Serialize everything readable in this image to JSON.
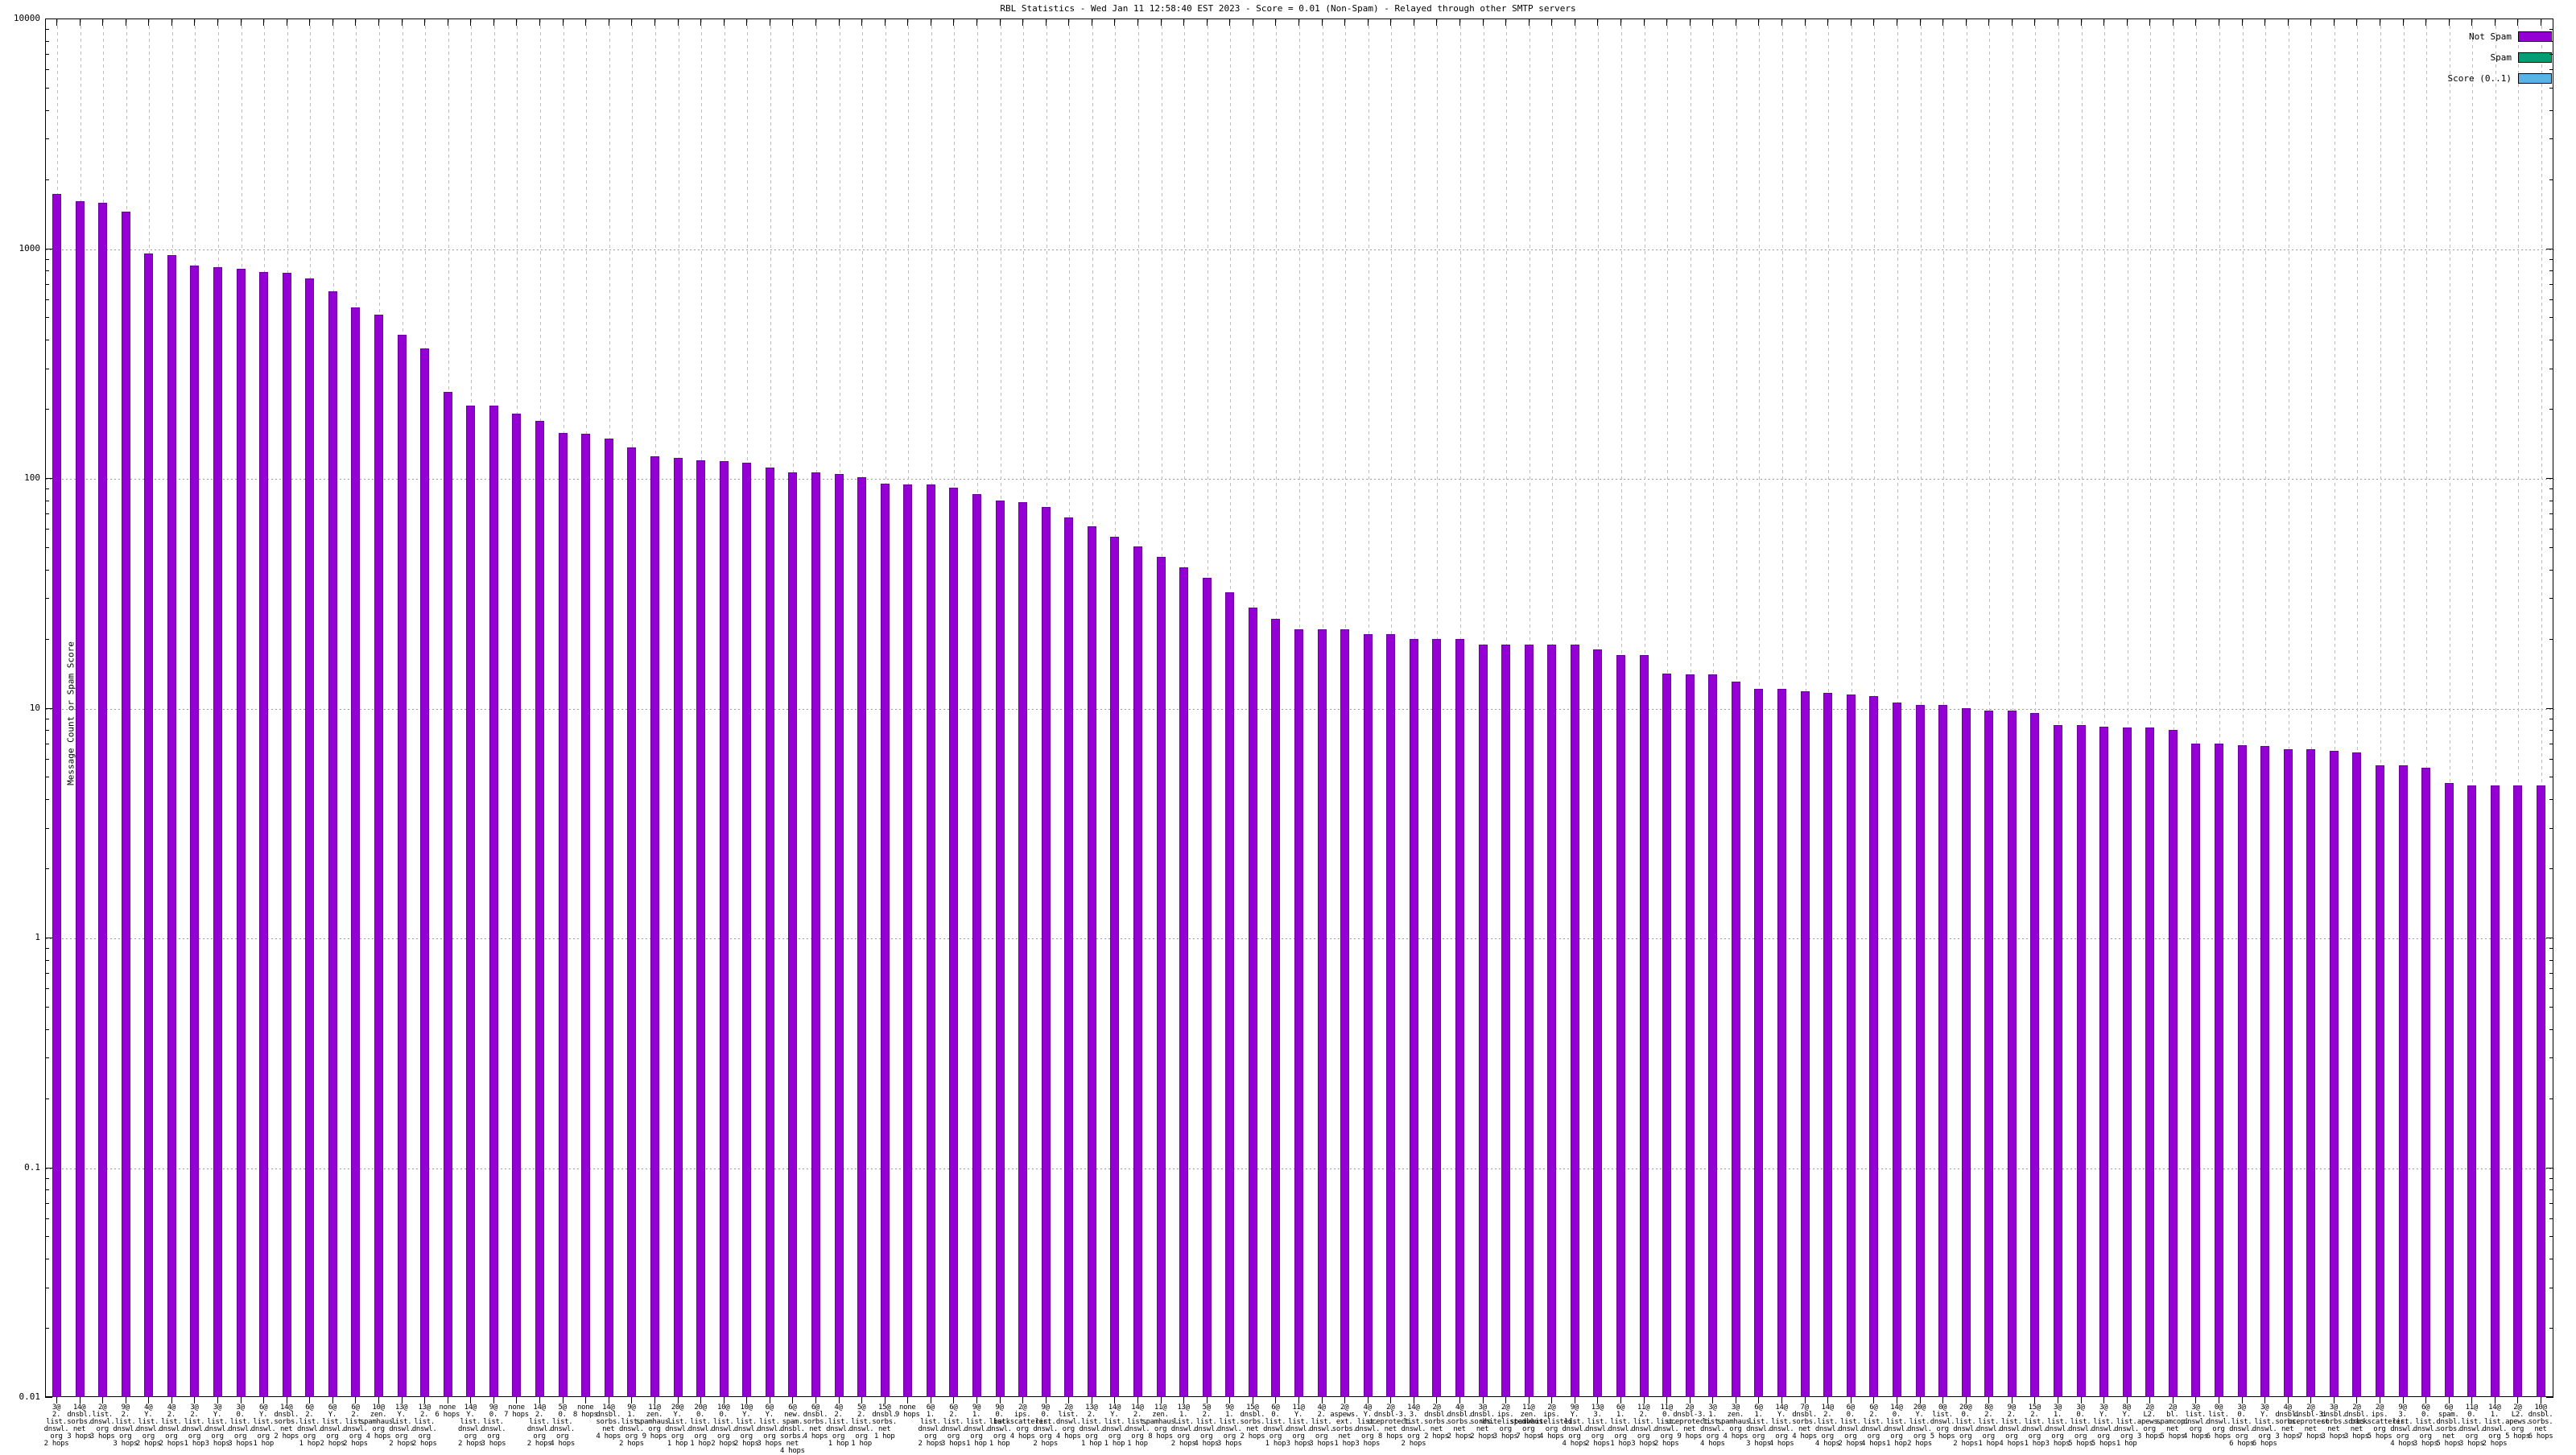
{
  "chart_data": {
    "type": "bar",
    "title": "RBL Statistics - Wed Jan 11 12:58:40 EST 2023 - Score = 0.01 (Non-Spam) - Relayed through other SMTP servers",
    "ylabel": "Message Count or Spam Score",
    "xlabel": "",
    "y_axis": {
      "scale": "log",
      "min": 0.01,
      "max": 10000,
      "tick_labels": [
        "10000",
        "1000",
        "100",
        "10",
        "1",
        "0.1",
        "0.01"
      ]
    },
    "grid": {
      "horizontal": "dotted lines at each decade",
      "vertical": "dashed line at each category"
    },
    "legend_position": "top-right",
    "legend": [
      {
        "label": "Not Spam",
        "color": "#9400d3"
      },
      {
        "label": "Spam",
        "color": "#009e73"
      },
      {
        "label": "Score (0..1)",
        "color": "#56b4e9"
      }
    ],
    "bar_series": "Not Spam",
    "categories": [
      "3@2.list.dnswl.org 2 hops",
      "14@dnsbl.sorbs.net 3 hops",
      "2@list.dnswl.org 3 hops",
      "9@2.list.dnswl.org 3 hops",
      "4@Y.list.dnswl.org 2 hops",
      "4@2.list.dnswl.org 2 hops",
      "3@2.list.dnswl.org 1 hop",
      "3@Y.list.dnswl.org 3 hops",
      "3@0.list.dnswl.org 3 hops",
      "6@Y.list.dnswl.org 1 hop",
      "14@dnsbl.sorbs.net 2 hops",
      "6@2.list.dnswl.org 1 hop",
      "6@Y.list.dnswl.org 2 hops",
      "6@2.list.dnswl.org 2 hops",
      "10@zen.spamhaus.org 4 hops",
      "13@Y.list.dnswl.org 2 hops",
      "13@2.list.dnswl.org 2 hops",
      "none 6 hops",
      "14@Y.list.dnswl.org 2 hops",
      "9@0.list.dnswl.org 3 hops",
      "none 7 hops",
      "14@2.list.dnswl.org 2 hops",
      "5@0.list.dnswl.org 4 hops",
      "none 8 hops",
      "14@dnsbl.sorbs.net 4 hops",
      "9@1.list.dnswl.org 2 hops",
      "11@zen.spamhaus.org 9 hops",
      "20@Y.list.dnswl.org 1 hop",
      "20@0.list.dnswl.org 1 hop",
      "10@0.list.dnswl.org 2 hops",
      "10@Y.list.dnswl.org 2 hops",
      "6@Y.list.dnswl.org 3 hops",
      "6@new.spam.dnsbl.sorbs.net 4 hops",
      "6@dnsbl.sorbs.net 4 hops",
      "4@2.list.dnswl.org 1 hop",
      "5@2.list.dnswl.org 1 hop",
      "15@dnsbl.sorbs.net 1 hop",
      "none 9 hops",
      "6@1.list.dnswl.org 2 hops",
      "6@2.list.dnswl.org 3 hops",
      "9@1.list.dnswl.org 1 hop",
      "9@0.list.dnswl.org 1 hop",
      "2@ips.backscatterer.org 4 hops",
      "9@0.list.dnswl.org 2 hops",
      "2@list.dnswl.org 4 hops",
      "13@2.list.dnswl.org 1 hop",
      "14@Y.list.dnswl.org 1 hop",
      "14@2.list.dnswl.org 1 hop",
      "11@zen.spamhaus.org 8 hops",
      "13@1.list.dnswl.org 2 hops",
      "5@2.list.dnswl.org 4 hops",
      "9@1.list.dnswl.org 3 hops",
      "15@dnsbl.sorbs.net 2 hops",
      "6@0.list.dnswl.org 1 hop",
      "11@Y.list.dnswl.org 3 hops",
      "4@2.list.dnswl.org 3 hops",
      "2@aspews.ext.sorbs.net 1 hop",
      "4@Y.list.dnswl.org 3 hops",
      "2@dnsbl-3.uceprotect.net 8 hops",
      "14@3.list.dnswl.org 2 hops",
      "2@dnsbl.sorbs.net 2 hops",
      "4@dnsbl.sorbs.net 2 hops",
      "3@dnsbl.sorbs.net 2 hops",
      "2@ips.whitelisted.org 3 hops",
      "11@zen.spamhaus.org 7 hops",
      "2@ips.whitelisted.org 4 hops",
      "9@Y.list.dnswl.org 4 hops",
      "13@3.list.dnswl.org 2 hops",
      "6@1.list.dnswl.org 1 hop",
      "11@2.list.dnswl.org 3 hops",
      "11@0.list.dnswl.org 2 hops",
      "2@dnsbl-3.uceprotect.net 9 hops",
      "3@1.list.dnswl.org 4 hops",
      "3@zen.spamhaus.org 4 hops",
      "6@1.list.dnswl.org 3 hops",
      "14@Y.list.dnswl.org 4 hops",
      "7@dnsbl.sorbs.net 4 hops",
      "14@2.list.dnswl.org 4 hops",
      "6@0.list.dnswl.org 2 hops",
      "6@2.list.dnswl.org 4 hops",
      "14@0.list.dnswl.org 1 hop",
      "20@Y.list.dnswl.org 2 hops",
      "0@list.dnswl.org 5 hops",
      "20@0.list.dnswl.org 2 hops",
      "8@2.list.dnswl.org 1 hop",
      "9@2.list.dnswl.org 4 hops",
      "15@2.list.dnswl.org 1 hop",
      "3@1.list.dnswl.org 3 hops",
      "3@0.list.dnswl.org 5 hops",
      "3@Y.list.dnswl.org 5 hops",
      "8@Y.list.dnswl.org 1 hop",
      "2@L2.apews.org 3 hops",
      "2@bl.spamcop.net 5 hops",
      "3@list.dnswl.org 4 hops",
      "0@list.dnswl.org 6 hops",
      "3@0.list.dnswl.org 6 hops",
      "3@Y.list.dnswl.org 6 hops",
      "4@dnsbl.sorbs.net 3 hops",
      "2@dnsbl-3.uceprotect.net 7 hops",
      "3@dnsbl.sorbs.net 3 hops",
      "2@dnsbl.sorbs.net 3 hops",
      "2@ips.backscatterer.org 5 hops",
      "9@3.list.dnswl.org 4 hops",
      "6@0.list.dnswl.org 3 hops",
      "6@spam.dnsbl.sorbs.net 5 hops",
      "11@0.list.dnswl.org 3 hops",
      "14@1.list.dnswl.org 2 hops",
      "2@L2.apews.org 5 hops",
      "10@dnsbl.sorbs.net 6 hops"
    ],
    "values": [
      1720,
      1600,
      1575,
      1445,
      950,
      935,
      842,
      829,
      817,
      787,
      783,
      740,
      652,
      551,
      516,
      420,
      367,
      237,
      207,
      206,
      191,
      178,
      157,
      156,
      149,
      136,
      124,
      122,
      119,
      118,
      117,
      111,
      106,
      106,
      104,
      101,
      94.3,
      94.1,
      93.4,
      91.1,
      85.2,
      79.7,
      78.4,
      75.1,
      67.4,
      61.4,
      55.7,
      50.2,
      45.5,
      41.0,
      36.9,
      31.9,
      27.4,
      24.3,
      22.0,
      22.0,
      22.0,
      20.9,
      20.9,
      19.9,
      19.9,
      19.9,
      18.9,
      18.9,
      18.9,
      18.9,
      18.9,
      17.9,
      17.0,
      17.0,
      14.1,
      14.0,
      14.0,
      13.0,
      12.1,
      12.1,
      11.8,
      11.6,
      11.4,
      11.2,
      10.5,
      10.3,
      10.3,
      10.0,
      9.7,
      9.7,
      9.5,
      8.4,
      8.4,
      8.3,
      8.2,
      8.2,
      8.0,
      7.0,
      7.0,
      6.9,
      6.8,
      6.6,
      6.6,
      6.5,
      6.4,
      5.6,
      5.6,
      5.5,
      4.7,
      4.6,
      4.6,
      4.6,
      4.6
    ]
  }
}
